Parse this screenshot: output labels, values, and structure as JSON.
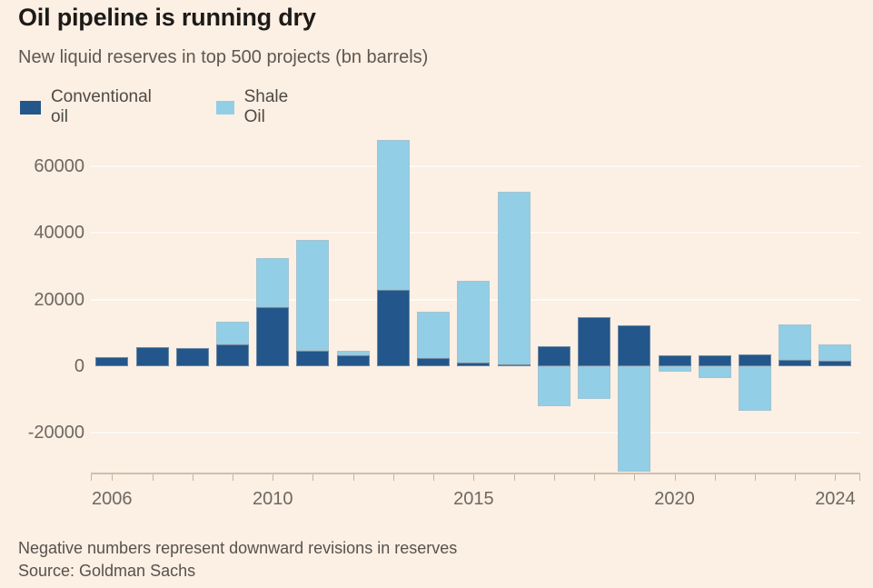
{
  "header": {
    "title": "Oil pipeline is running dry",
    "subtitle": "New liquid reserves in top 500 projects (bn barrels)"
  },
  "legend": {
    "items": [
      {
        "label": "Conventional oil",
        "color": "#23568A"
      },
      {
        "label": "Shale Oil",
        "color": "#92CEE5"
      }
    ]
  },
  "footer": {
    "note": "Negative numbers represent downward revisions in reserves",
    "source": "Source: Goldman Sachs"
  },
  "colors": {
    "background": "#FCEFE3",
    "conventional": "#23568A",
    "shale": "#92CEE5",
    "axis": "#CCC0B2",
    "text": "#6E6862"
  },
  "chart_data": {
    "type": "bar",
    "stacked": true,
    "title": "Oil pipeline is running dry",
    "subtitle": "New liquid reserves in top 500 projects (bn barrels)",
    "xlabel": "",
    "ylabel": "",
    "grid": "horizontal",
    "legend_position": "top-left",
    "ylim": [
      -32000,
      68500
    ],
    "categories": [
      "2006",
      "2007",
      "2008",
      "2009",
      "2010",
      "2011",
      "2012",
      "2013",
      "2014",
      "2015",
      "2016",
      "2017",
      "2018",
      "2019",
      "2020",
      "2021",
      "2022",
      "2023",
      "2024"
    ],
    "series": [
      {
        "name": "Conventional oil",
        "color": "#23568A",
        "values": [
          2700,
          5700,
          5400,
          6600,
          17800,
          4700,
          3300,
          23000,
          2400,
          1000,
          600,
          6100,
          14700,
          12200,
          3400,
          3400,
          3500,
          2000,
          1700
        ]
      },
      {
        "name": "Shale Oil",
        "color": "#92CEE5",
        "values": [
          0,
          0,
          0,
          6900,
          14600,
          33200,
          1400,
          45000,
          14000,
          24700,
          51700,
          -12100,
          -9700,
          -31700,
          -1600,
          -3500,
          -13300,
          10600,
          4900
        ]
      }
    ],
    "yticks": [
      {
        "value": -20000,
        "label": "-20000"
      },
      {
        "value": 0,
        "label": "0"
      },
      {
        "value": 20000,
        "label": "20000"
      },
      {
        "value": 40000,
        "label": "40000"
      },
      {
        "value": 60000,
        "label": "60000"
      }
    ],
    "xtick_labels": [
      "2006",
      "2010",
      "2015",
      "2020",
      "2024"
    ]
  }
}
